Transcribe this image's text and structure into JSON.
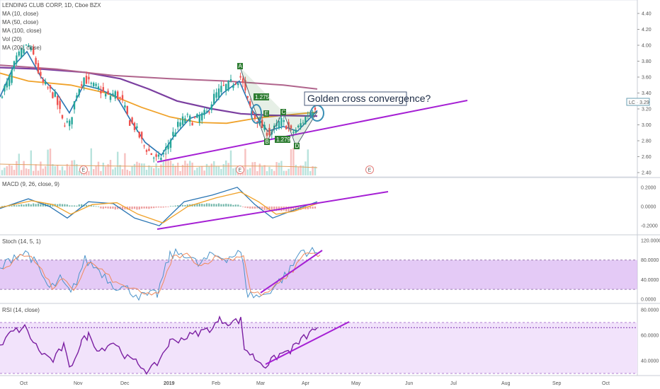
{
  "header": {
    "symbol": "LENDING CLUB CORP, 1D, Cboe BZX",
    "studies": [
      "MA (10, close)",
      "MA (50, close)",
      "MA (100, close)",
      "Vol (20)",
      "MA (200, close)"
    ],
    "price_tag": "LC · 3.29"
  },
  "panes": {
    "macd_label": "MACD (9, 26, close, 9)",
    "stoch_label": "Stoch (14, 5, 1)",
    "rsi_label": "RSI (14, close)"
  },
  "annotations": {
    "callout": "Golden cross convergence?",
    "pattern_points": [
      "A",
      "B",
      "C",
      "D",
      "E"
    ],
    "pattern_ratios": [
      "1.275",
      "1.279"
    ],
    "earnings_marker": "E"
  },
  "x_axis": {
    "labels": [
      "Oct",
      "Nov",
      "Dec",
      "2019",
      "Feb",
      "Mar",
      "Apr",
      "May",
      "Jun",
      "Jul",
      "Aug",
      "Sep",
      "Oct"
    ]
  },
  "colors": {
    "up": "#26a69a",
    "down": "#ef5350",
    "ma10": "#2a75b3",
    "ma50": "#f0a22a",
    "ma100": "#7b3fa0",
    "ma200": "#b0648c",
    "trendline": "#a51fd4",
    "pattern": "#2e7d32",
    "band": "#d9b3f2"
  },
  "chart_data": [
    {
      "type": "line",
      "title": "LENDING CLUB CORP, 1D, Cboe BZX",
      "x": [
        "Oct",
        "Nov",
        "Dec",
        "2019",
        "Feb",
        "Mar",
        "Apr"
      ],
      "ylim": [
        2.4,
        4.4
      ],
      "yticks": [
        "4.40",
        "4.20",
        "4.00",
        "3.80",
        "3.60",
        "3.40",
        "3.20",
        "3.00",
        "2.80",
        "2.60",
        "2.40"
      ],
      "series": [
        {
          "name": "MA (10, close)",
          "values": [
            3.95,
            3.55,
            3.05,
            2.62,
            3.55,
            2.95,
            3.2
          ]
        },
        {
          "name": "MA (50, close)",
          "values": [
            3.55,
            3.5,
            3.25,
            2.95,
            3.03,
            3.08,
            3.15
          ]
        },
        {
          "name": "MA (100, close)",
          "values": [
            3.7,
            3.65,
            3.5,
            3.35,
            3.2,
            3.12,
            3.12
          ]
        },
        {
          "name": "MA (200, close)",
          "values": [
            3.75,
            3.68,
            3.62,
            3.58,
            3.56,
            3.52,
            3.45
          ]
        }
      ],
      "last_price": 3.29
    },
    {
      "type": "line",
      "title": "MACD (9, 26, close, 9)",
      "ylim": [
        -0.25,
        0.25
      ],
      "yticks": [
        "0.2000",
        "0.0000",
        "-0.2000"
      ],
      "series": [
        {
          "name": "MACD",
          "values": [
            0.05,
            0.03,
            0.0,
            -0.22,
            0.2,
            -0.12,
            0.05
          ]
        }
      ]
    },
    {
      "type": "line",
      "title": "Stoch (14, 5, 1)",
      "ylim": [
        0,
        120
      ],
      "yticks": [
        "120.0000",
        "80.0000",
        "40.0000",
        "0.0000"
      ],
      "series": [
        {
          "name": "Stoch",
          "values": [
            90,
            30,
            10,
            5,
            95,
            15,
            100
          ]
        }
      ]
    },
    {
      "type": "line",
      "title": "RSI (14, close)",
      "ylim": [
        30,
        80
      ],
      "yticks": [
        "80.0000",
        "60.0000",
        "40.0000"
      ],
      "series": [
        {
          "name": "RSI",
          "values": [
            66,
            52,
            38,
            30,
            72,
            35,
            66
          ]
        }
      ]
    }
  ]
}
